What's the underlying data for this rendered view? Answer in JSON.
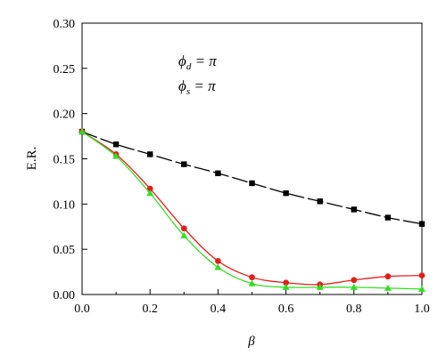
{
  "chart_data": {
    "type": "line",
    "xlabel": "β",
    "ylabel": "E.R.",
    "xlim": [
      0.0,
      1.0
    ],
    "ylim": [
      0.0,
      0.3
    ],
    "x_ticks": [
      "0.0",
      "0.2",
      "0.4",
      "0.6",
      "0.8",
      "1.0"
    ],
    "y_ticks": [
      "0.00",
      "0.05",
      "0.10",
      "0.15",
      "0.20",
      "0.25",
      "0.30"
    ],
    "grid": false,
    "annotations": [
      {
        "symbol": "ϕ",
        "sub": "d",
        "rest": " = π"
      },
      {
        "symbol": "ϕ",
        "sub": "s",
        "rest": " = π"
      }
    ],
    "series": [
      {
        "color": "#000000",
        "marker": "square",
        "dash": "long-dash",
        "x": [
          0.0,
          0.1,
          0.2,
          0.3,
          0.4,
          0.5,
          0.6,
          0.7,
          0.8,
          0.9,
          1.0
        ],
        "y": [
          0.18,
          0.166,
          0.155,
          0.144,
          0.134,
          0.123,
          0.112,
          0.103,
          0.094,
          0.085,
          0.078
        ]
      },
      {
        "color": "#e0201e",
        "marker": "circle",
        "dash": "solid",
        "x": [
          0.0,
          0.1,
          0.2,
          0.3,
          0.4,
          0.5,
          0.6,
          0.7,
          0.8,
          0.9,
          1.0
        ],
        "y": [
          0.18,
          0.155,
          0.117,
          0.073,
          0.037,
          0.019,
          0.013,
          0.011,
          0.016,
          0.02,
          0.021
        ]
      },
      {
        "color": "#33dd22",
        "marker": "triangle",
        "dash": "solid",
        "x": [
          0.0,
          0.1,
          0.2,
          0.3,
          0.4,
          0.5,
          0.6,
          0.7,
          0.8,
          0.9,
          1.0
        ],
        "y": [
          0.18,
          0.153,
          0.112,
          0.065,
          0.03,
          0.012,
          0.008,
          0.008,
          0.008,
          0.007,
          0.006
        ]
      }
    ]
  }
}
